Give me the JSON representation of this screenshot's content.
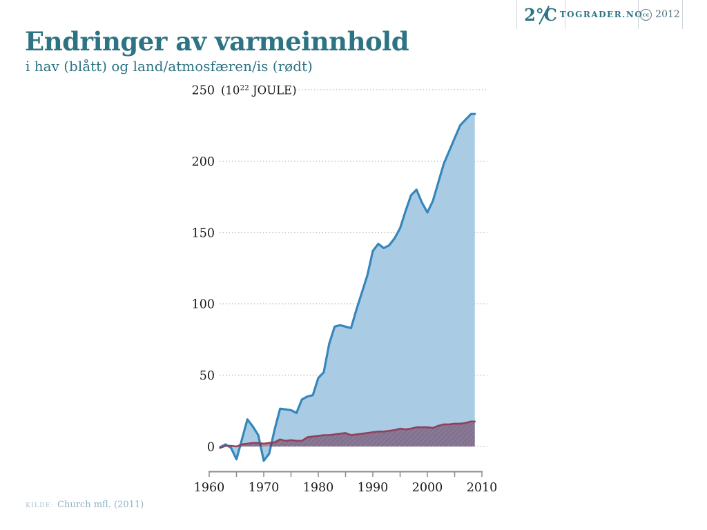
{
  "header": {
    "logo_text": "2°C",
    "site": "TOGRADER.NO",
    "cc": "cc",
    "year": "2012"
  },
  "title": "Endringer av varmeinnhold",
  "subtitle": "i hav (blått) og land/atmosfæren/is (rødt)",
  "source": {
    "label": "KILDE:",
    "text": "Church mfl. (2011)"
  },
  "chart_data": {
    "type": "area",
    "title": "Endringer av varmeinnhold",
    "subtitle": "i hav (blått) og land/atmosfæren/is (rødt)",
    "unit_prefix": "(10",
    "unit_sup": "22",
    "unit_suffix": " JOULE)",
    "xlim": [
      1960,
      2010
    ],
    "ylim": [
      0,
      250
    ],
    "x_major_ticks": [
      1960,
      1970,
      1980,
      1990,
      2000,
      2010
    ],
    "x_minor_step": 5,
    "y_ticks": [
      0,
      50,
      100,
      150,
      200,
      250
    ],
    "grid": "horizontal dotted",
    "legend_position": "none (colors named in subtitle)",
    "x": [
      1962,
      1963,
      1964,
      1965,
      1966,
      1967,
      1968,
      1969,
      1970,
      1971,
      1972,
      1973,
      1974,
      1975,
      1976,
      1977,
      1978,
      1979,
      1980,
      1981,
      1982,
      1983,
      1984,
      1985,
      1986,
      1987,
      1988,
      1989,
      1990,
      1991,
      1992,
      1993,
      1994,
      1995,
      1996,
      1997,
      1998,
      1999,
      2000,
      2001,
      2002,
      2003,
      2004,
      2005,
      2006,
      2007,
      2008,
      2008.7
    ],
    "series": [
      {
        "name": "hav",
        "color_word": "blått",
        "line_color": "#3586BB",
        "fill_color": "#A9CBE4",
        "values": [
          -0.5,
          1.5,
          -1,
          -9,
          5,
          19,
          14,
          8,
          -10,
          -5,
          12,
          26.5,
          26,
          25.5,
          23.5,
          33,
          35,
          36,
          48,
          52,
          72,
          84,
          85,
          84,
          83,
          96,
          108,
          120,
          137,
          142,
          139,
          141,
          146,
          153,
          165,
          176,
          180,
          171,
          164,
          172,
          185,
          198,
          207,
          216,
          225,
          229,
          233,
          233
        ]
      },
      {
        "name": "land/atmosfæren/is",
        "color_word": "rødt",
        "line_color": "#91405C",
        "fill_color": "rgba(92,26,58,0.5)",
        "values": [
          -1,
          0.5,
          0.5,
          0,
          1.5,
          2,
          2.5,
          2.5,
          2,
          2.5,
          3,
          5,
          4,
          4.5,
          4,
          4,
          6.5,
          7,
          7.5,
          8,
          8,
          8.5,
          9,
          9.5,
          8,
          8.5,
          9,
          9.5,
          10,
          10.5,
          10.5,
          11,
          11.5,
          12.5,
          12,
          12.5,
          13.5,
          13.5,
          13.5,
          13,
          14.5,
          15.5,
          15.5,
          16,
          16,
          16.5,
          17.5,
          17.5
        ]
      }
    ]
  }
}
